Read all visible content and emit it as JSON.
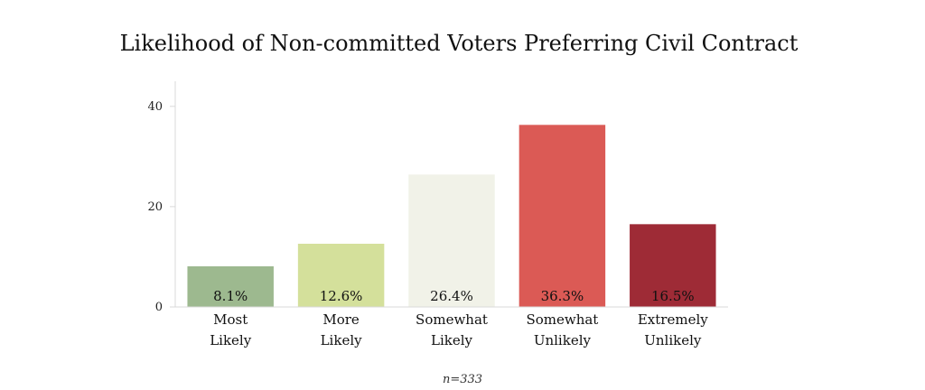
{
  "chart_data": {
    "type": "bar",
    "title": "Likelihood  of  Non-committed Voters Preferring Civil Contract",
    "categories": [
      [
        "Most",
        "Likely"
      ],
      [
        "More",
        "Likely"
      ],
      [
        "Somewhat",
        "Likely"
      ],
      [
        "Somewhat",
        "Unlikely"
      ],
      [
        "Extremely",
        "Unlikely"
      ]
    ],
    "values": [
      8.1,
      12.6,
      26.4,
      36.3,
      16.5
    ],
    "value_labels": [
      "8.1%",
      "12.6%",
      "26.4%",
      "36.3%",
      "16.5%"
    ],
    "colors": [
      "#9db98f",
      "#d4e09b",
      "#f1f2e8",
      "#db5a55",
      "#9e2b36"
    ],
    "yticks": [
      0,
      20,
      40
    ],
    "ytick_labels": [
      "0",
      "20",
      "40"
    ],
    "ylim": [
      0,
      45
    ],
    "xlabel": "",
    "ylabel": "",
    "grid": false,
    "legend": "none",
    "note": "n=333"
  }
}
